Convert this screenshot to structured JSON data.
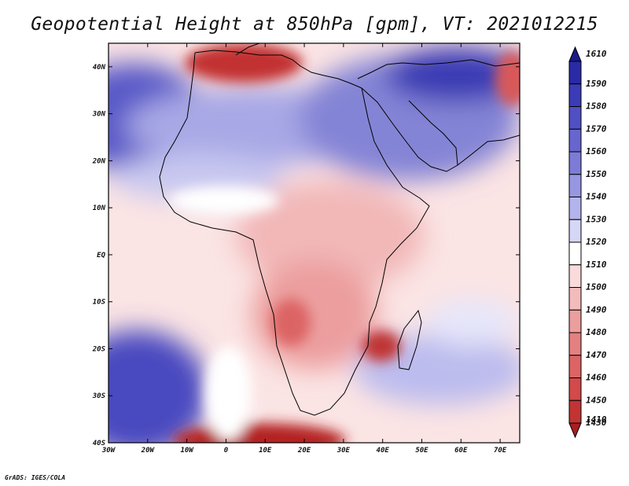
{
  "title": "Geopotential Height at 850hPa [gpm], VT: 2021012215",
  "credit": "GrADS: IGES/COLA",
  "map": {
    "lon_range": [
      -30,
      75
    ],
    "lat_range": [
      -40,
      45
    ],
    "lat_ticks": [
      {
        "value": 40,
        "label": "40N"
      },
      {
        "value": 30,
        "label": "30N"
      },
      {
        "value": 20,
        "label": "20N"
      },
      {
        "value": 10,
        "label": "10N"
      },
      {
        "value": 0,
        "label": "EQ"
      },
      {
        "value": -10,
        "label": "10S"
      },
      {
        "value": -20,
        "label": "20S"
      },
      {
        "value": -30,
        "label": "30S"
      },
      {
        "value": -40,
        "label": "40S"
      }
    ],
    "lon_ticks": [
      {
        "value": -30,
        "label": "30W"
      },
      {
        "value": -20,
        "label": "20W"
      },
      {
        "value": -10,
        "label": "10W"
      },
      {
        "value": 0,
        "label": "0"
      },
      {
        "value": 10,
        "label": "10E"
      },
      {
        "value": 20,
        "label": "20E"
      },
      {
        "value": 30,
        "label": "30E"
      },
      {
        "value": 40,
        "label": "40E"
      },
      {
        "value": 50,
        "label": "50E"
      },
      {
        "value": 60,
        "label": "60E"
      },
      {
        "value": 70,
        "label": "70E"
      }
    ]
  },
  "colorbar": {
    "levels": [
      {
        "label": "1610",
        "color": "#1a1a8c"
      },
      {
        "label": "1590",
        "color": "#2a2aa6"
      },
      {
        "label": "1580",
        "color": "#3b3bb8"
      },
      {
        "label": "1570",
        "color": "#5050c4"
      },
      {
        "label": "1560",
        "color": "#6666ce"
      },
      {
        "label": "1550",
        "color": "#7c7cd8"
      },
      {
        "label": "1540",
        "color": "#9696e2"
      },
      {
        "label": "1530",
        "color": "#b4b4ec"
      },
      {
        "label": "1520",
        "color": "#d6d6f6"
      },
      {
        "label": "1510",
        "color": "#ffffff"
      },
      {
        "label": "1500",
        "color": "#fadada"
      },
      {
        "label": "1490",
        "color": "#f3bcbc"
      },
      {
        "label": "1480",
        "color": "#ec9e9e"
      },
      {
        "label": "1470",
        "color": "#e48080"
      },
      {
        "label": "1460",
        "color": "#dc6464"
      },
      {
        "label": "1450",
        "color": "#d24a4a"
      },
      {
        "label": "1430",
        "color": "#c23434"
      },
      {
        "label": "1410",
        "color": "#a81f1f"
      }
    ]
  },
  "field": {
    "units": "gpm",
    "features": [
      {
        "name": "azores-high",
        "lon": -25,
        "lat": 32,
        "value": 1575
      },
      {
        "name": "sahara-high",
        "lon": 0,
        "lat": 27,
        "value": 1548
      },
      {
        "name": "arabia-high",
        "lon": 55,
        "lat": 32,
        "value": 1580
      },
      {
        "name": "mediterranean-low",
        "lon": 10,
        "lat": 42,
        "value": 1450
      },
      {
        "name": "kalahari-low",
        "lon": 23,
        "lat": -17,
        "value": 1475
      },
      {
        "name": "mozambique-low",
        "lon": 38,
        "lat": -20,
        "value": 1440
      },
      {
        "name": "south-atlantic-high",
        "lon": -25,
        "lat": -32,
        "value": 1590
      },
      {
        "name": "southern-ocean-low",
        "lon": 15,
        "lat": -40,
        "value": 1420
      }
    ]
  }
}
